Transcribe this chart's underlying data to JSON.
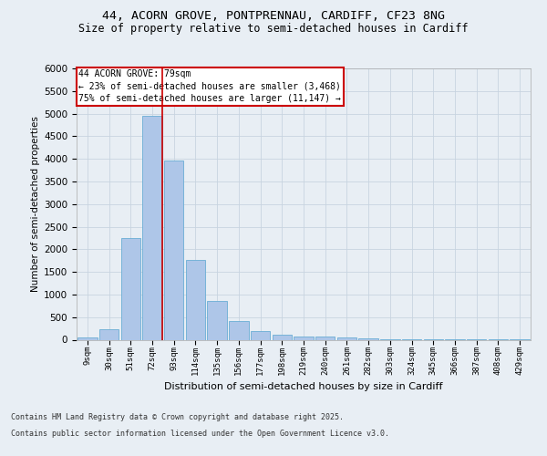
{
  "title1": "44, ACORN GROVE, PONTPRENNAU, CARDIFF, CF23 8NG",
  "title2": "Size of property relative to semi-detached houses in Cardiff",
  "xlabel": "Distribution of semi-detached houses by size in Cardiff",
  "ylabel": "Number of semi-detached properties",
  "categories": [
    "9sqm",
    "30sqm",
    "51sqm",
    "72sqm",
    "93sqm",
    "114sqm",
    "135sqm",
    "156sqm",
    "177sqm",
    "198sqm",
    "219sqm",
    "240sqm",
    "261sqm",
    "282sqm",
    "303sqm",
    "324sqm",
    "345sqm",
    "366sqm",
    "387sqm",
    "408sqm",
    "429sqm"
  ],
  "values": [
    50,
    230,
    2250,
    4950,
    3970,
    1760,
    855,
    415,
    195,
    105,
    75,
    65,
    55,
    40,
    10,
    5,
    3,
    2,
    1,
    1,
    1
  ],
  "bar_color": "#aec6e8",
  "bar_edge_color": "#6aadd5",
  "vline_color": "#cc0000",
  "annotation_title": "44 ACORN GROVE: 79sqm",
  "annotation_line1": "← 23% of semi-detached houses are smaller (3,468)",
  "annotation_line2": "75% of semi-detached houses are larger (11,147) →",
  "annotation_box_color": "#ffffff",
  "annotation_box_edge": "#cc0000",
  "ylim": [
    0,
    6000
  ],
  "yticks": [
    0,
    500,
    1000,
    1500,
    2000,
    2500,
    3000,
    3500,
    4000,
    4500,
    5000,
    5500,
    6000
  ],
  "footer1": "Contains HM Land Registry data © Crown copyright and database right 2025.",
  "footer2": "Contains public sector information licensed under the Open Government Licence v3.0.",
  "bg_color": "#e8eef4",
  "grid_color": "#c8d4e0"
}
